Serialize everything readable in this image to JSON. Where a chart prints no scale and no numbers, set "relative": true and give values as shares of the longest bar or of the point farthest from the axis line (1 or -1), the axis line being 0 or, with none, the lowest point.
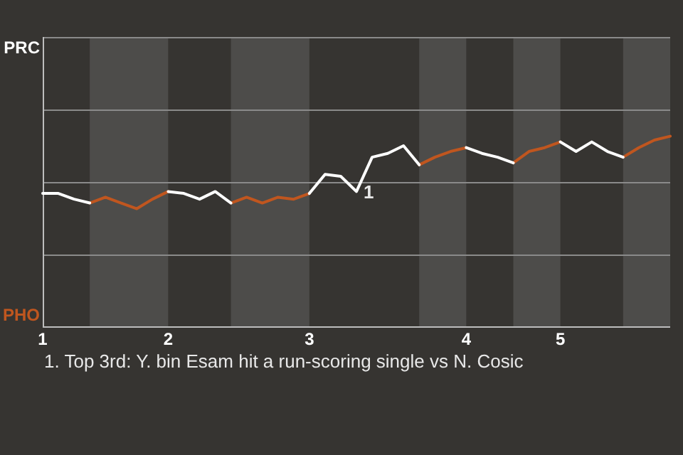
{
  "chart_data": {
    "type": "line",
    "relative": true,
    "categories": [
      "1",
      null,
      null,
      null,
      null,
      null,
      null,
      null,
      "2",
      null,
      null,
      null,
      null,
      null,
      null,
      null,
      null,
      "3",
      null,
      null,
      null,
      null,
      null,
      null,
      null,
      null,
      null,
      "4",
      null,
      null,
      null,
      null,
      null,
      "5",
      null,
      null,
      null,
      null,
      null,
      null,
      null
    ],
    "series": [
      {
        "name": "PRC",
        "color": "#ffffff",
        "values": [
          0.7,
          0.7,
          0.67,
          0.65,
          null,
          null,
          null,
          null,
          0.71,
          0.7,
          0.67,
          0.71,
          0.65,
          null,
          null,
          null,
          null,
          0.7,
          0.8,
          0.79,
          0.71,
          0.89,
          0.91,
          0.95,
          0.85,
          null,
          null,
          0.94,
          0.91,
          0.89,
          0.86,
          null,
          null,
          0.97,
          0.92,
          0.97,
          0.92,
          0.89,
          null,
          null,
          null
        ]
      },
      {
        "name": "PHO",
        "color": "#c0561f",
        "values": [
          null,
          null,
          null,
          0.65,
          0.68,
          0.65,
          0.62,
          0.67,
          0.71,
          null,
          null,
          null,
          0.65,
          0.68,
          0.65,
          0.68,
          0.67,
          0.7,
          null,
          null,
          null,
          null,
          null,
          null,
          0.85,
          0.89,
          0.92,
          0.94,
          null,
          null,
          0.86,
          0.92,
          0.94,
          0.97,
          null,
          null,
          null,
          0.89,
          0.94,
          0.98,
          1
        ]
      }
    ],
    "ref_lines": [
      {
        "axis": "y",
        "value": 0.38,
        "color": "#8a8a8a"
      },
      {
        "axis": "y",
        "value": 0.76,
        "color": "#8a8a8a"
      },
      {
        "axis": "y",
        "value": 1.14,
        "color": "#8a8a8a"
      }
    ],
    "marker": "none",
    "line_style": "solid",
    "annotations": [
      {
        "text": "1",
        "x": "3",
        "y": 0.71
      },
      "1. Top 3rd: Y. bin Esam hit a run-scoring single vs N. Cosic"
    ]
  }
}
